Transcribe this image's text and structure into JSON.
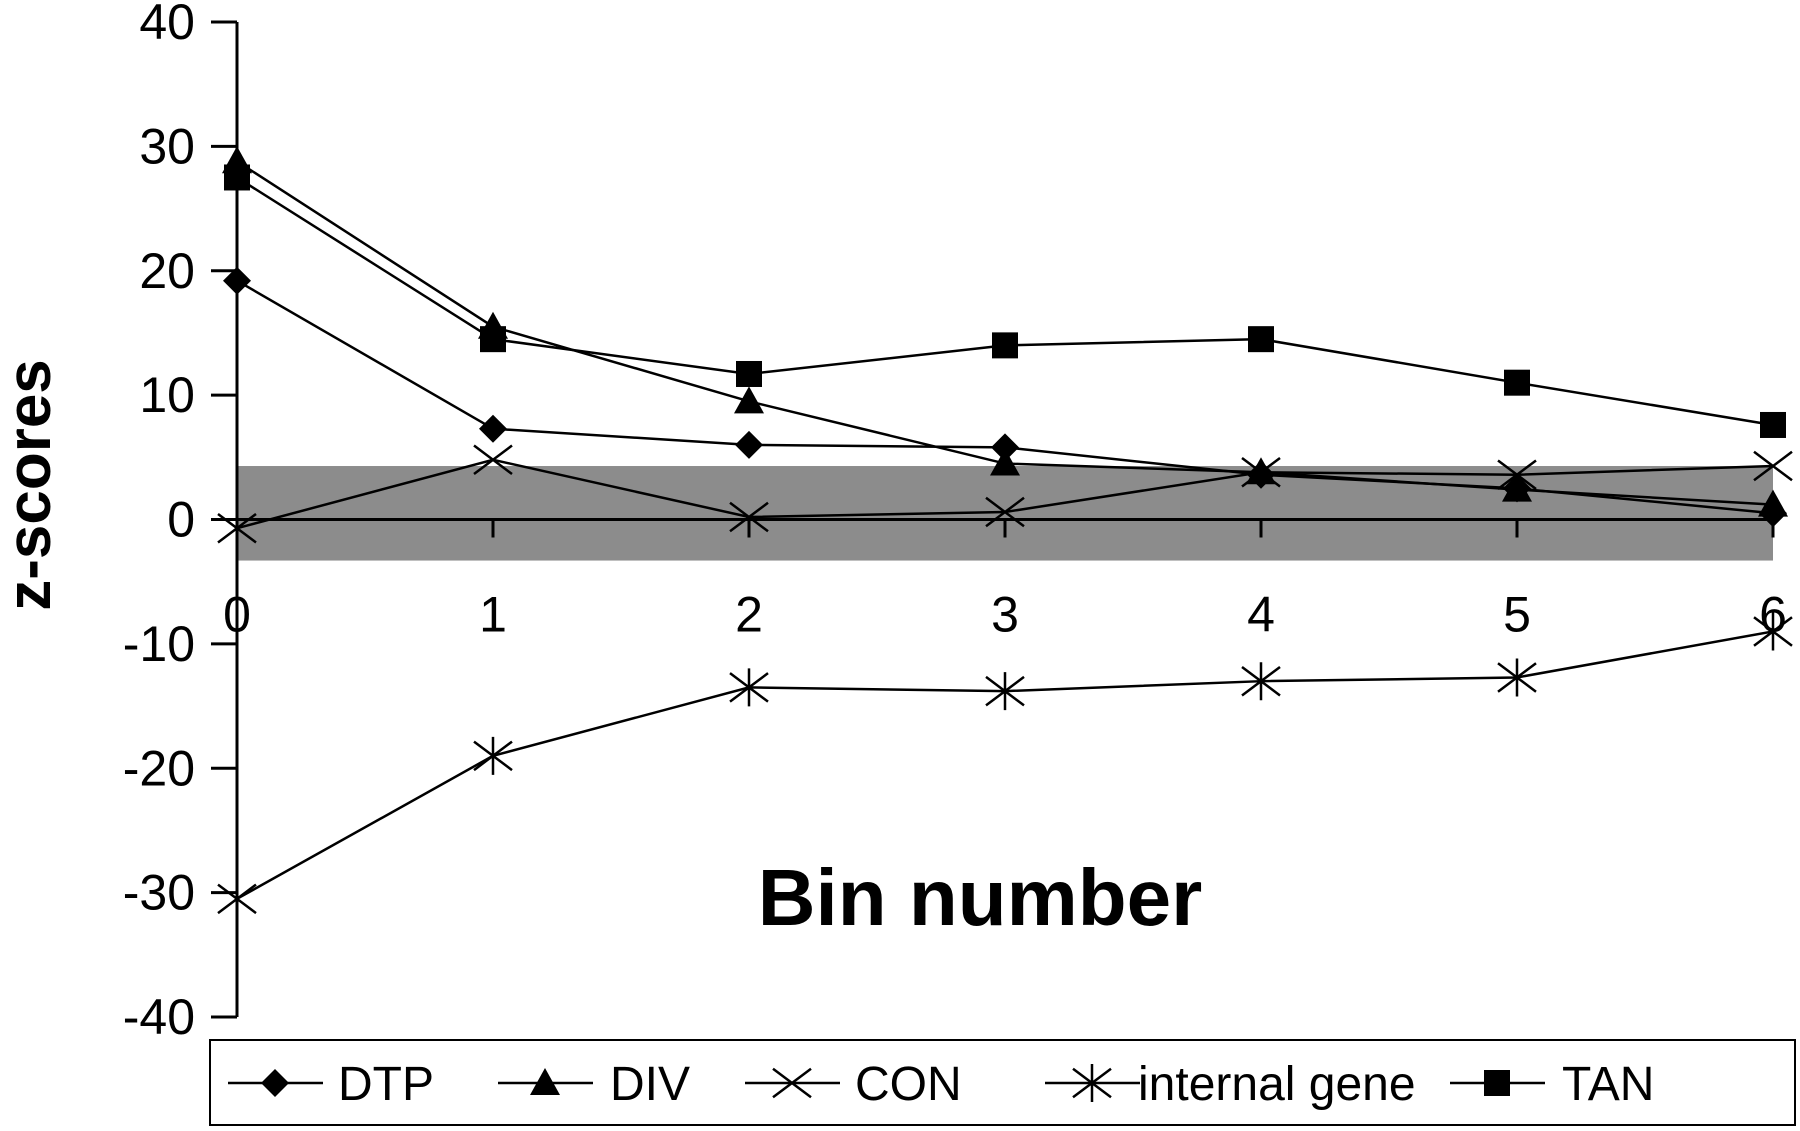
{
  "chart_data": {
    "type": "line",
    "xlabel": "Bin number",
    "ylabel": "z-scores",
    "x": [
      0,
      1,
      2,
      3,
      4,
      5,
      6
    ],
    "xticks": [
      "0",
      "1",
      "2",
      "3",
      "4",
      "5",
      "6"
    ],
    "ylim": [
      -40,
      40
    ],
    "yticks": [
      "40",
      "30",
      "20",
      "10",
      "0",
      "-10",
      "-20",
      "-30",
      "-40"
    ],
    "grid": false,
    "legend": "bottom",
    "shaded_band": {
      "from": -3.3,
      "to": 4.3,
      "color": "#8c8c8c"
    },
    "series": [
      {
        "name": "DTP",
        "marker": "diamond",
        "values": [
          19.2,
          7.3,
          6.0,
          5.8,
          3.6,
          2.5,
          0.5
        ]
      },
      {
        "name": "DIV",
        "marker": "triangle",
        "values": [
          28.8,
          15.5,
          9.5,
          4.5,
          3.8,
          2.4,
          1.2
        ]
      },
      {
        "name": "CON",
        "marker": "x",
        "values": [
          -0.7,
          4.8,
          0.2,
          0.6,
          3.8,
          3.6,
          4.3
        ]
      },
      {
        "name": "internal gene",
        "marker": "asterisk",
        "values": [
          -30.5,
          -19.0,
          -13.5,
          -13.8,
          -13.0,
          -12.7,
          -9.0
        ]
      },
      {
        "name": "TAN",
        "marker": "square",
        "values": [
          27.5,
          14.5,
          11.7,
          14.0,
          14.5,
          11.0,
          7.6
        ]
      }
    ]
  }
}
